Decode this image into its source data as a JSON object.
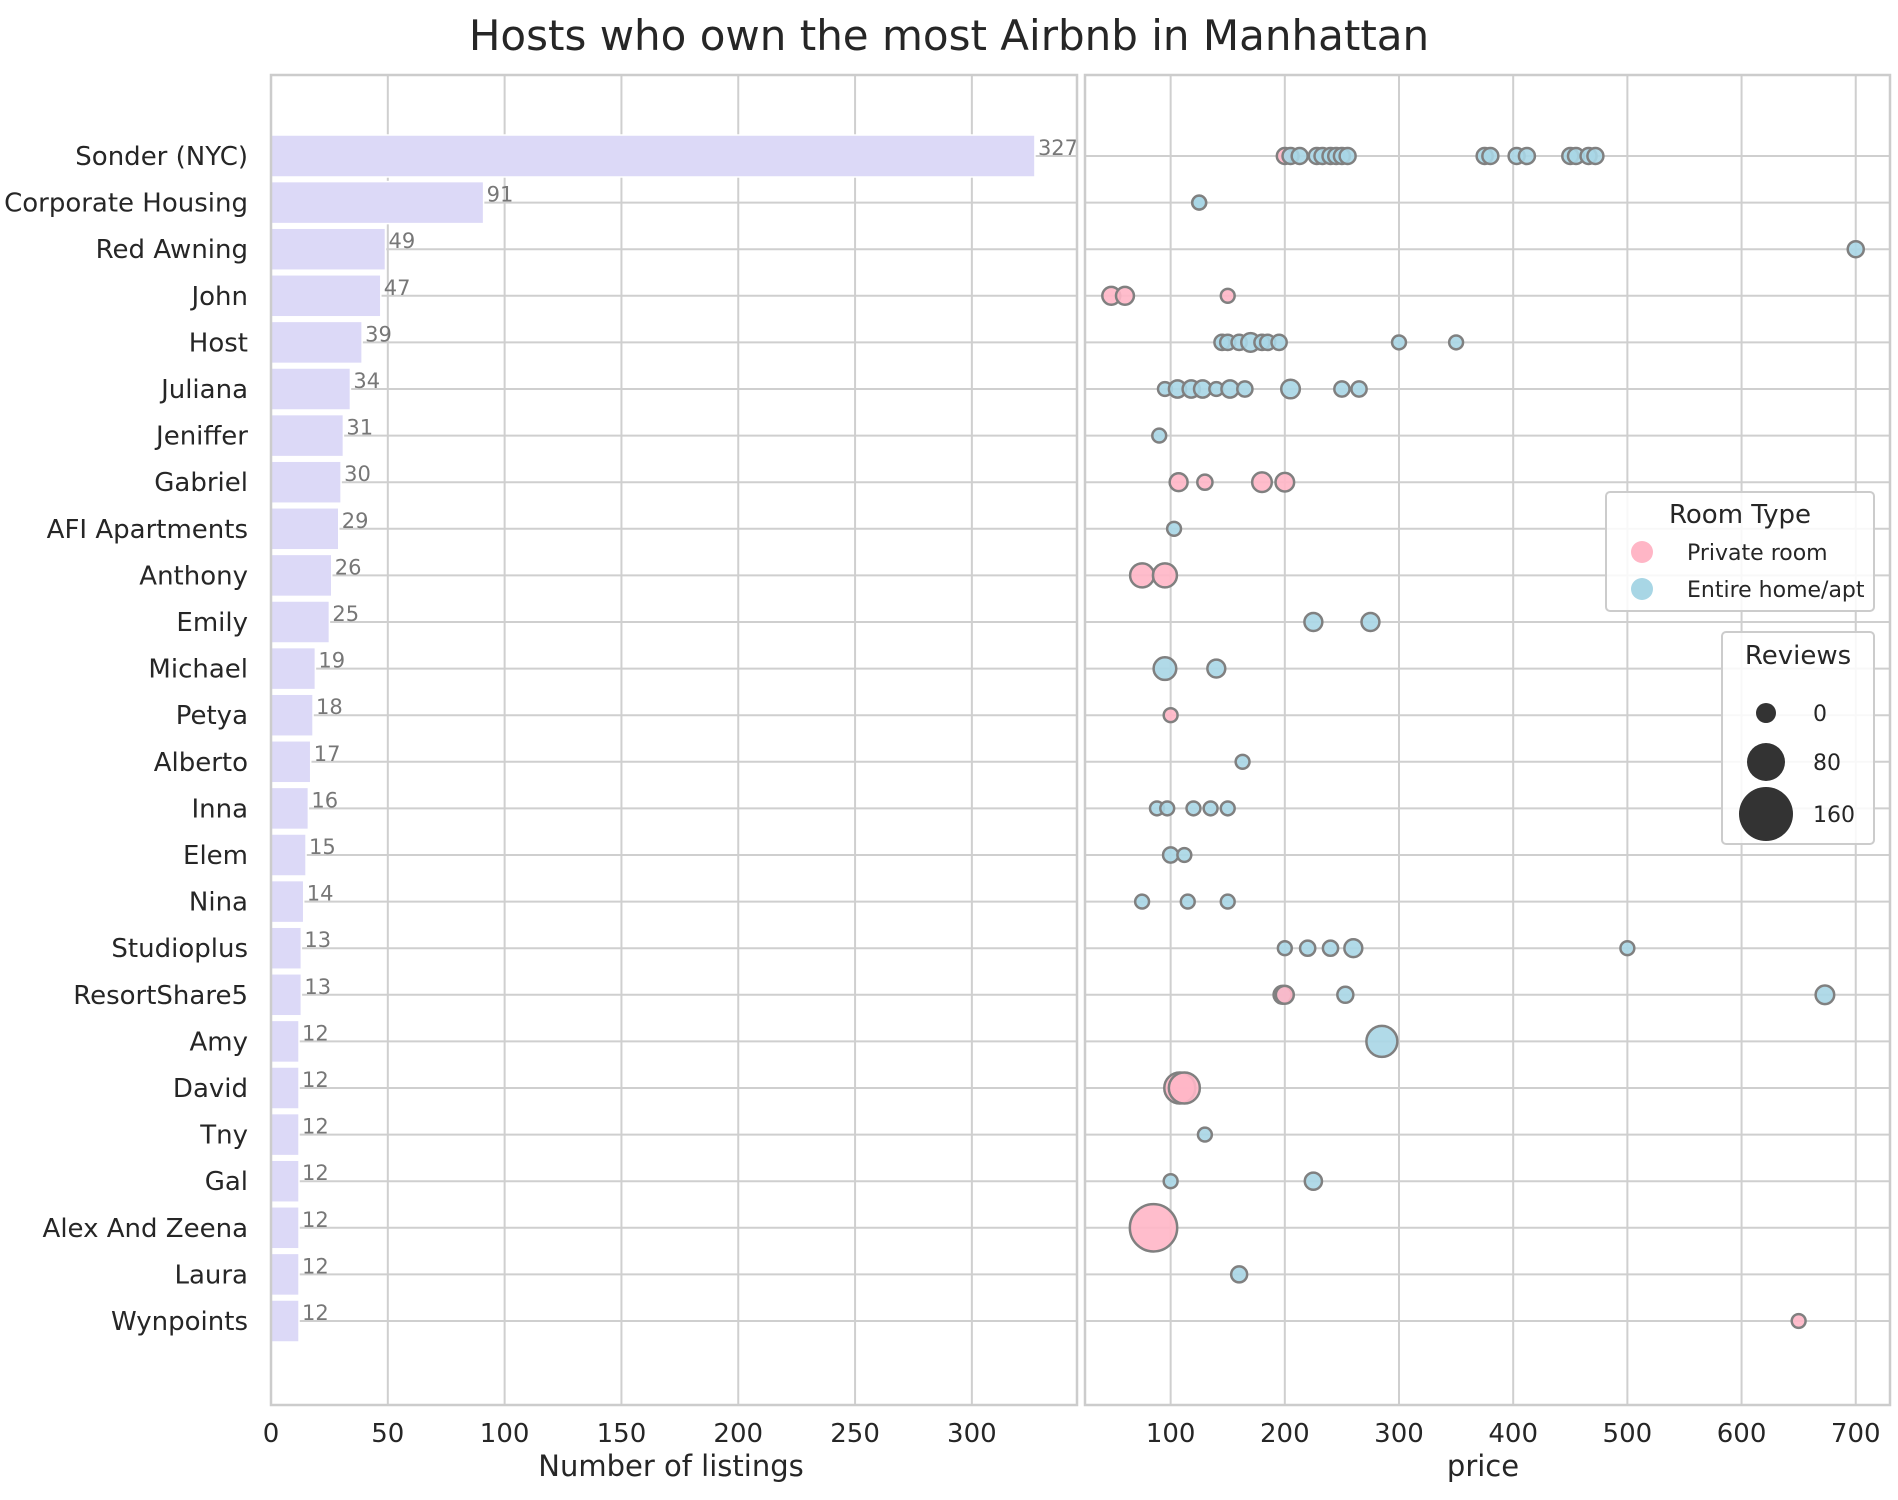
{
  "chart_data": {
    "title": "Hosts who own the most Airbnb in Manhattan",
    "colors": {
      "bar": "#dcd9f7",
      "private_room": "#ffb6c6",
      "entire_home": "#a8d6e5",
      "marker_edge": "#808080",
      "grid": "#cfcfcf"
    },
    "hosts": [
      "Sonder (NYC)",
      "Corporate Housing",
      "Red Awning",
      "John",
      "Host",
      "Juliana",
      "Jeniffer",
      "Gabriel",
      "AFI Apartments",
      "Anthony",
      "Emily",
      "Michael",
      "Petya",
      "Alberto",
      "Inna",
      "Elem",
      "Nina",
      "Studioplus",
      "ResortShare5",
      "Amy",
      "David",
      "Tny",
      "Gal",
      "Alex And Zeena",
      "Laura",
      "Wynpoints"
    ],
    "panels": [
      {
        "type": "bar",
        "orientation": "horizontal",
        "xlabel": "Number of listings",
        "xlim": [
          0,
          345
        ],
        "xticks": [
          0,
          50,
          100,
          150,
          200,
          250,
          300
        ],
        "values": [
          327,
          91,
          49,
          47,
          39,
          34,
          31,
          30,
          29,
          26,
          25,
          19,
          18,
          17,
          16,
          15,
          14,
          13,
          13,
          12,
          12,
          12,
          12,
          12,
          12,
          12
        ],
        "data_labels": [
          "327",
          "91",
          "49",
          "47",
          "39",
          "34",
          "31",
          "30",
          "29",
          "26",
          "25",
          "19",
          "18",
          "17",
          "16",
          "15",
          "14",
          "13",
          "13",
          "12",
          "12",
          "12",
          "12",
          "12",
          "12",
          "12"
        ]
      },
      {
        "type": "scatter",
        "xlabel": "price",
        "xlim": [
          25,
          730
        ],
        "xticks": [
          100,
          200,
          300,
          400,
          500,
          600,
          700
        ],
        "points": [
          {
            "host": "Sonder (NYC)",
            "price": 200,
            "room": "Private room",
            "reviews": 5
          },
          {
            "host": "Sonder (NYC)",
            "price": 205,
            "room": "Entire home/apt",
            "reviews": 5
          },
          {
            "host": "Sonder (NYC)",
            "price": 213,
            "room": "Entire home/apt",
            "reviews": 5
          },
          {
            "host": "Sonder (NYC)",
            "price": 228,
            "room": "Entire home/apt",
            "reviews": 5
          },
          {
            "host": "Sonder (NYC)",
            "price": 233,
            "room": "Entire home/apt",
            "reviews": 5
          },
          {
            "host": "Sonder (NYC)",
            "price": 240,
            "room": "Entire home/apt",
            "reviews": 5
          },
          {
            "host": "Sonder (NYC)",
            "price": 245,
            "room": "Entire home/apt",
            "reviews": 5
          },
          {
            "host": "Sonder (NYC)",
            "price": 250,
            "room": "Entire home/apt",
            "reviews": 5
          },
          {
            "host": "Sonder (NYC)",
            "price": 255,
            "room": "Entire home/apt",
            "reviews": 5
          },
          {
            "host": "Sonder (NYC)",
            "price": 375,
            "room": "Entire home/apt",
            "reviews": 5
          },
          {
            "host": "Sonder (NYC)",
            "price": 380,
            "room": "Entire home/apt",
            "reviews": 5
          },
          {
            "host": "Sonder (NYC)",
            "price": 403,
            "room": "Entire home/apt",
            "reviews": 5
          },
          {
            "host": "Sonder (NYC)",
            "price": 412,
            "room": "Entire home/apt",
            "reviews": 5
          },
          {
            "host": "Sonder (NYC)",
            "price": 450,
            "room": "Entire home/apt",
            "reviews": 5
          },
          {
            "host": "Sonder (NYC)",
            "price": 455,
            "room": "Entire home/apt",
            "reviews": 5
          },
          {
            "host": "Sonder (NYC)",
            "price": 466,
            "room": "Entire home/apt",
            "reviews": 5
          },
          {
            "host": "Sonder (NYC)",
            "price": 472,
            "room": "Entire home/apt",
            "reviews": 5
          },
          {
            "host": "Corporate Housing",
            "price": 125,
            "room": "Entire home/apt",
            "reviews": 0
          },
          {
            "host": "Corporate Housing",
            "price": 125,
            "room": "Entire home/apt",
            "reviews": 0
          },
          {
            "host": "Red Awning",
            "price": 700,
            "room": "Entire home/apt",
            "reviews": 5
          },
          {
            "host": "John",
            "price": 48,
            "room": "Private room",
            "reviews": 10
          },
          {
            "host": "John",
            "price": 60,
            "room": "Private room",
            "reviews": 10
          },
          {
            "host": "John",
            "price": 150,
            "room": "Private room",
            "reviews": 0
          },
          {
            "host": "Host",
            "price": 145,
            "room": "Entire home/apt",
            "reviews": 3
          },
          {
            "host": "Host",
            "price": 150,
            "room": "Entire home/apt",
            "reviews": 3
          },
          {
            "host": "Host",
            "price": 160,
            "room": "Entire home/apt",
            "reviews": 3
          },
          {
            "host": "Host",
            "price": 170,
            "room": "Entire home/apt",
            "reviews": 12
          },
          {
            "host": "Host",
            "price": 180,
            "room": "Entire home/apt",
            "reviews": 3
          },
          {
            "host": "Host",
            "price": 185,
            "room": "Entire home/apt",
            "reviews": 3
          },
          {
            "host": "Host",
            "price": 195,
            "room": "Entire home/apt",
            "reviews": 3
          },
          {
            "host": "Host",
            "price": 300,
            "room": "Entire home/apt",
            "reviews": 0
          },
          {
            "host": "Host",
            "price": 350,
            "room": "Entire home/apt",
            "reviews": 0
          },
          {
            "host": "Juliana",
            "price": 95,
            "room": "Entire home/apt",
            "reviews": 0
          },
          {
            "host": "Juliana",
            "price": 106,
            "room": "Entire home/apt",
            "reviews": 8
          },
          {
            "host": "Juliana",
            "price": 118,
            "room": "Entire home/apt",
            "reviews": 8
          },
          {
            "host": "Juliana",
            "price": 128,
            "room": "Entire home/apt",
            "reviews": 8
          },
          {
            "host": "Juliana",
            "price": 140,
            "room": "Entire home/apt",
            "reviews": 0
          },
          {
            "host": "Juliana",
            "price": 152,
            "room": "Entire home/apt",
            "reviews": 8
          },
          {
            "host": "Juliana",
            "price": 165,
            "room": "Entire home/apt",
            "reviews": 3
          },
          {
            "host": "Juliana",
            "price": 205,
            "room": "Entire home/apt",
            "reviews": 12
          },
          {
            "host": "Juliana",
            "price": 250,
            "room": "Entire home/apt",
            "reviews": 3
          },
          {
            "host": "Juliana",
            "price": 265,
            "room": "Entire home/apt",
            "reviews": 3
          },
          {
            "host": "Jeniffer",
            "price": 90,
            "room": "Entire home/apt",
            "reviews": 0
          },
          {
            "host": "Gabriel",
            "price": 107,
            "room": "Private room",
            "reviews": 10
          },
          {
            "host": "Gabriel",
            "price": 130,
            "room": "Private room",
            "reviews": 3
          },
          {
            "host": "Gabriel",
            "price": 180,
            "room": "Private room",
            "reviews": 15
          },
          {
            "host": "Gabriel",
            "price": 200,
            "room": "Private room",
            "reviews": 12
          },
          {
            "host": "AFI Apartments",
            "price": 103,
            "room": "Entire home/apt",
            "reviews": 0
          },
          {
            "host": "Anthony",
            "price": 75,
            "room": "Private room",
            "reviews": 30
          },
          {
            "host": "Anthony",
            "price": 95,
            "room": "Private room",
            "reviews": 30
          },
          {
            "host": "Emily",
            "price": 225,
            "room": "Entire home/apt",
            "reviews": 10
          },
          {
            "host": "Emily",
            "price": 275,
            "room": "Entire home/apt",
            "reviews": 10
          },
          {
            "host": "Michael",
            "price": 95,
            "room": "Entire home/apt",
            "reviews": 25
          },
          {
            "host": "Michael",
            "price": 140,
            "room": "Entire home/apt",
            "reviews": 10
          },
          {
            "host": "Petya",
            "price": 100,
            "room": "Private room",
            "reviews": 0
          },
          {
            "host": "Alberto",
            "price": 163,
            "room": "Entire home/apt",
            "reviews": 0
          },
          {
            "host": "Inna",
            "price": 88,
            "room": "Entire home/apt",
            "reviews": 0
          },
          {
            "host": "Inna",
            "price": 97,
            "room": "Entire home/apt",
            "reviews": 0
          },
          {
            "host": "Inna",
            "price": 120,
            "room": "Entire home/apt",
            "reviews": 0
          },
          {
            "host": "Inna",
            "price": 135,
            "room": "Entire home/apt",
            "reviews": 0
          },
          {
            "host": "Inna",
            "price": 150,
            "room": "Entire home/apt",
            "reviews": 0
          },
          {
            "host": "Elem",
            "price": 100,
            "room": "Entire home/apt",
            "reviews": 3
          },
          {
            "host": "Elem",
            "price": 112,
            "room": "Entire home/apt",
            "reviews": 0
          },
          {
            "host": "Nina",
            "price": 75,
            "room": "Entire home/apt",
            "reviews": 0
          },
          {
            "host": "Nina",
            "price": 115,
            "room": "Entire home/apt",
            "reviews": 0
          },
          {
            "host": "Nina",
            "price": 150,
            "room": "Entire home/apt",
            "reviews": 0
          },
          {
            "host": "Studioplus",
            "price": 200,
            "room": "Entire home/apt",
            "reviews": 0
          },
          {
            "host": "Studioplus",
            "price": 220,
            "room": "Entire home/apt",
            "reviews": 3
          },
          {
            "host": "Studioplus",
            "price": 240,
            "room": "Entire home/apt",
            "reviews": 3
          },
          {
            "host": "Studioplus",
            "price": 260,
            "room": "Entire home/apt",
            "reviews": 10
          },
          {
            "host": "Studioplus",
            "price": 500,
            "room": "Entire home/apt",
            "reviews": 0
          },
          {
            "host": "ResortShare5",
            "price": 198,
            "room": "Entire home/apt",
            "reviews": 10
          },
          {
            "host": "ResortShare5",
            "price": 200,
            "room": "Private room",
            "reviews": 10
          },
          {
            "host": "ResortShare5",
            "price": 253,
            "room": "Entire home/apt",
            "reviews": 5
          },
          {
            "host": "ResortShare5",
            "price": 673,
            "room": "Entire home/apt",
            "reviews": 12
          },
          {
            "host": "Amy",
            "price": 285,
            "room": "Entire home/apt",
            "reviews": 60
          },
          {
            "host": "David",
            "price": 108,
            "room": "Private room",
            "reviews": 60
          },
          {
            "host": "David",
            "price": 112,
            "room": "Private room",
            "reviews": 60
          },
          {
            "host": "Tny",
            "price": 130,
            "room": "Entire home/apt",
            "reviews": 0
          },
          {
            "host": "Gal",
            "price": 100,
            "room": "Entire home/apt",
            "reviews": 0
          },
          {
            "host": "Gal",
            "price": 225,
            "room": "Entire home/apt",
            "reviews": 8
          },
          {
            "host": "Alex And Zeena",
            "price": 85,
            "room": "Private room",
            "reviews": 160
          },
          {
            "host": "Laura",
            "price": 160,
            "room": "Entire home/apt",
            "reviews": 5
          },
          {
            "host": "Wynpoints",
            "price": 650,
            "room": "Private room",
            "reviews": 0
          }
        ],
        "legend_room": {
          "title": "Room Type",
          "placement": "right",
          "entries": [
            {
              "label": "Private room",
              "color": "#ffb6c6"
            },
            {
              "label": "Entire home/apt",
              "color": "#a8d6e5"
            }
          ]
        },
        "legend_size": {
          "title": "Reviews",
          "placement": "right",
          "entries": [
            {
              "label": "0",
              "reviews": 0
            },
            {
              "label": "80",
              "reviews": 80
            },
            {
              "label": "160",
              "reviews": 160
            }
          ]
        }
      }
    ]
  }
}
